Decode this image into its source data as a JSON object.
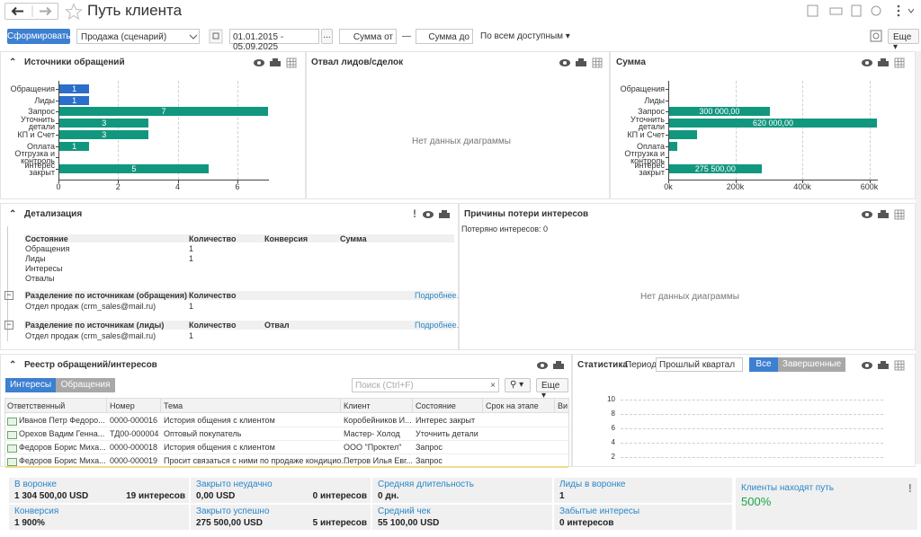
{
  "header": {
    "title": "Путь клиента"
  },
  "toolbar": {
    "generate": "Сформировать",
    "scenario": "Продажа (сценарий)",
    "period": "01.01.2015 - 05.09.2025",
    "period_button": "...",
    "sum_from": "Сумма от",
    "dash": "—",
    "sum_to": "Сумма до",
    "scope": "По всем доступным",
    "more": "Еще"
  },
  "sources_panel": {
    "title": "Источники обращений",
    "chart_data": {
      "type": "bar",
      "orientation": "horizontal",
      "categories": [
        "Обращения",
        "Лиды",
        "Запрос",
        "Уточнить детали",
        "КП и Счет",
        "Оплата",
        "Отгрузка и контроль",
        "интерес закрыт"
      ],
      "values": [
        1,
        1,
        7,
        3,
        3,
        1,
        null,
        5
      ],
      "colors": [
        "#2a6fc9",
        "#2a6fc9",
        "#12977f",
        "#12977f",
        "#12977f",
        "#12977f",
        "#12977f",
        "#12977f"
      ],
      "xlim": [
        0,
        7
      ],
      "xticks": [
        0,
        2,
        4,
        6
      ],
      "grid": true
    }
  },
  "dropout_panel": {
    "title": "Отвал лидов/сделок",
    "no_data": "Нет данных диаграммы"
  },
  "amount_panel": {
    "title": "Сумма",
    "chart_data": {
      "type": "bar",
      "orientation": "horizontal",
      "categories": [
        "Обращения",
        "Лиды",
        "Запрос",
        "Уточнить детали",
        "КП и Счет",
        "Оплата",
        "Отгрузка и контроль",
        "интерес закрыт"
      ],
      "values": [
        null,
        null,
        300000,
        620000,
        83000,
        24000,
        null,
        275500
      ],
      "value_labels": [
        null,
        null,
        "300 000,00",
        "620 000,00",
        null,
        null,
        null,
        "275 500,00"
      ],
      "color": "#12977f",
      "xlim": [
        0,
        620000
      ],
      "xticks": [
        {
          "value": 0,
          "label": "0k"
        },
        {
          "value": 200000,
          "label": "200k"
        },
        {
          "value": 400000,
          "label": "400k"
        },
        {
          "value": 600000,
          "label": "600k"
        }
      ],
      "grid": true
    }
  },
  "details_panel": {
    "title": "Детализация",
    "states": {
      "headers": [
        "Состояние",
        "Количество",
        "Конверсия",
        "Сумма"
      ],
      "rows": [
        [
          "Обращения",
          "1"
        ],
        [
          "Лиды",
          "1"
        ],
        [
          "Интересы"
        ],
        [
          "Отвалы"
        ]
      ]
    },
    "by_source_requests": {
      "headers": [
        "Разделение по источникам (обращения)",
        "Количество"
      ],
      "more": "Подробнее.",
      "rows": [
        [
          "Отдел продаж (crm_sales@mail.ru)",
          "1"
        ]
      ]
    },
    "by_source_leads": {
      "headers": [
        "Разделение по источникам (лиды)",
        "Количество",
        "Отвал"
      ],
      "more": "Подробнее.",
      "rows": [
        [
          "Отдел продаж (crm_sales@mail.ru)",
          "1"
        ]
      ]
    }
  },
  "loss_panel": {
    "title": "Причины потери интересов",
    "lost": "Потеряно интересов: 0",
    "no_data": "Нет данных диаграммы"
  },
  "registry_panel": {
    "title": "Реестр обращений/интересов",
    "tabs": [
      "Интересы",
      "Обращения"
    ],
    "search": "Поиск (Ctrl+F)",
    "more": "Еще",
    "table": {
      "headers": [
        "Ответственный",
        "Номер",
        "Тема",
        "Клиент",
        "Состояние",
        "Срок на этапе",
        "Ви"
      ],
      "rows": [
        [
          "Иванов Петр Федоро...",
          "0000-000016",
          "История общения с клиентом",
          "Коробейников И...",
          "Интерес закрыт"
        ],
        [
          "Орехов Вадим Генна...",
          "ТД00-000004",
          "Оптовый покупатель",
          "Мастер- Холод",
          "Уточнить детали"
        ],
        [
          "Федоров Борис Миха...",
          "0000-000018",
          "История общения с клиентом",
          "ООО \"Проктел\"",
          "Запрос"
        ],
        [
          "Федоров Борис Миха...",
          "0000-000019",
          "Просит связаться с ними по продаже кондицио...",
          "Петров Илья Евг...",
          "Запрос"
        ]
      ]
    }
  },
  "stats_panel": {
    "title": "Статистика",
    "period_label": "Период:",
    "period": "Прошлый квартал",
    "buttons": [
      "Все",
      "Завершенные"
    ],
    "chart_data": {
      "type": "bar",
      "ylim": [
        0,
        10
      ],
      "yticks": [
        2,
        4,
        6,
        8,
        10
      ],
      "grid": true
    }
  },
  "summary": {
    "in_funnel": {
      "label": "В воронке",
      "value": "1 304 500,00 USD",
      "count": "19 интересов"
    },
    "closed_lost": {
      "label": "Закрыто неудачно",
      "value": "0,00 USD",
      "count": "0 интересов"
    },
    "avg_duration": {
      "label": "Средняя длительность",
      "value": "0 дн."
    },
    "leads_in_funnel": {
      "label": "Лиды в воронке",
      "value": "1"
    },
    "conversion": {
      "label": "Конверсия",
      "value": "1 900%"
    },
    "closed_won": {
      "label": "Закрыто успешно",
      "value": "275 500,00 USD",
      "count": "5 интересов"
    },
    "avg_check": {
      "label": "Средний чек",
      "value": "55 100,00 USD"
    },
    "forgotten": {
      "label": "Забытые интересы",
      "value": "0 интересов"
    },
    "clients_path": {
      "label": "Клиенты находят путь",
      "value": "500%"
    }
  }
}
